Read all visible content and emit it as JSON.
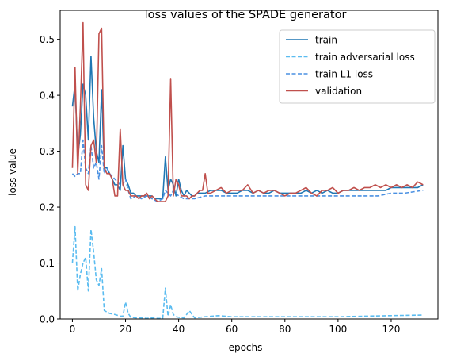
{
  "chart_data": {
    "type": "line",
    "title": "loss values of the SPADE generator",
    "xlabel": "epochs",
    "ylabel": "loss value",
    "xlim": [
      -4.6,
      137.6
    ],
    "ylim": [
      0,
      0.552
    ],
    "xticks": [
      0,
      20,
      40,
      60,
      80,
      100,
      120
    ],
    "yticks": [
      0.0,
      0.1,
      0.2,
      0.3,
      0.4,
      0.5
    ],
    "xtick_labels": [
      "0",
      "20",
      "40",
      "60",
      "80",
      "100",
      "120"
    ],
    "ytick_labels": [
      "0.0",
      "0.1",
      "0.2",
      "0.3",
      "0.4",
      "0.5"
    ],
    "grid": false,
    "legend_position": "top-right",
    "legend_entries": [
      "train",
      "train adversarial loss",
      "train L1 loss",
      "validation"
    ],
    "series": [
      {
        "name": "train",
        "color": "#1f77b4",
        "dash": "solid",
        "x": [
          0,
          1,
          2,
          3,
          4,
          5,
          6,
          7,
          8,
          9,
          10,
          11,
          12,
          13,
          14,
          15,
          16,
          17,
          18,
          19,
          20,
          21,
          22,
          23,
          24,
          25,
          26,
          27,
          28,
          29,
          30,
          31,
          32,
          33,
          34,
          35,
          36,
          37,
          38,
          39,
          40,
          41,
          42,
          43,
          44,
          45,
          46,
          47,
          48,
          49,
          50,
          52,
          54,
          56,
          58,
          60,
          62,
          64,
          66,
          68,
          70,
          72,
          74,
          76,
          78,
          80,
          82,
          84,
          86,
          88,
          90,
          92,
          94,
          96,
          98,
          100,
          102,
          104,
          106,
          108,
          110,
          112,
          114,
          116,
          118,
          120,
          122,
          124,
          126,
          128,
          130,
          132
        ],
        "y": [
          0.38,
          0.42,
          0.29,
          0.33,
          0.42,
          0.4,
          0.32,
          0.47,
          0.36,
          0.3,
          0.28,
          0.41,
          0.27,
          0.27,
          0.26,
          0.25,
          0.24,
          0.24,
          0.23,
          0.31,
          0.25,
          0.24,
          0.225,
          0.225,
          0.22,
          0.22,
          0.22,
          0.22,
          0.22,
          0.22,
          0.22,
          0.215,
          0.215,
          0.215,
          0.215,
          0.29,
          0.23,
          0.25,
          0.24,
          0.22,
          0.25,
          0.23,
          0.22,
          0.23,
          0.225,
          0.22,
          0.22,
          0.225,
          0.225,
          0.225,
          0.225,
          0.23,
          0.23,
          0.23,
          0.225,
          0.225,
          0.225,
          0.23,
          0.23,
          0.225,
          0.23,
          0.225,
          0.225,
          0.23,
          0.225,
          0.225,
          0.225,
          0.225,
          0.225,
          0.23,
          0.225,
          0.23,
          0.225,
          0.23,
          0.225,
          0.225,
          0.23,
          0.23,
          0.23,
          0.23,
          0.23,
          0.23,
          0.23,
          0.23,
          0.23,
          0.235,
          0.235,
          0.235,
          0.235,
          0.235,
          0.235,
          0.24
        ]
      },
      {
        "name": "train adversarial loss",
        "color": "#5bbcf0",
        "dash": "dashed",
        "x": [
          0,
          1,
          2,
          3,
          4,
          5,
          6,
          7,
          8,
          9,
          10,
          11,
          12,
          14,
          16,
          18,
          19,
          20,
          21,
          22,
          24,
          26,
          28,
          30,
          32,
          34,
          35,
          36,
          37,
          38,
          39,
          40,
          42,
          43,
          44,
          46,
          50,
          55,
          60,
          70,
          80,
          90,
          100,
          110,
          120,
          132
        ],
        "y": [
          0.1,
          0.165,
          0.05,
          0.08,
          0.1,
          0.11,
          0.05,
          0.16,
          0.12,
          0.07,
          0.06,
          0.09,
          0.015,
          0.01,
          0.008,
          0.005,
          0.005,
          0.03,
          0.01,
          0.003,
          0.002,
          0.002,
          0.001,
          0.002,
          0.001,
          0.001,
          0.055,
          0.005,
          0.025,
          0.008,
          0.004,
          0.003,
          0.002,
          0.008,
          0.015,
          0.002,
          0.004,
          0.006,
          0.004,
          0.004,
          0.004,
          0.004,
          0.004,
          0.005,
          0.006,
          0.007
        ]
      },
      {
        "name": "train L1 loss",
        "color": "#4a90e2",
        "dash": "dashed",
        "x": [
          0,
          1,
          2,
          3,
          4,
          5,
          6,
          7,
          8,
          9,
          10,
          11,
          12,
          13,
          14,
          16,
          18,
          19,
          20,
          21,
          22,
          24,
          26,
          28,
          30,
          32,
          34,
          35,
          36,
          37,
          38,
          40,
          42,
          44,
          46,
          50,
          55,
          60,
          65,
          70,
          75,
          80,
          85,
          90,
          95,
          100,
          105,
          110,
          115,
          120,
          125,
          132
        ],
        "y": [
          0.26,
          0.255,
          0.26,
          0.26,
          0.32,
          0.27,
          0.26,
          0.31,
          0.27,
          0.28,
          0.25,
          0.31,
          0.26,
          0.27,
          0.26,
          0.25,
          0.24,
          0.24,
          0.25,
          0.23,
          0.215,
          0.22,
          0.215,
          0.22,
          0.215,
          0.21,
          0.215,
          0.23,
          0.225,
          0.22,
          0.23,
          0.22,
          0.215,
          0.215,
          0.215,
          0.22,
          0.22,
          0.22,
          0.22,
          0.22,
          0.22,
          0.22,
          0.22,
          0.22,
          0.22,
          0.22,
          0.22,
          0.22,
          0.22,
          0.225,
          0.225,
          0.23
        ]
      },
      {
        "name": "validation",
        "color": "#c0504d",
        "dash": "solid",
        "x": [
          0,
          1,
          2,
          3,
          4,
          5,
          6,
          7,
          8,
          9,
          10,
          11,
          12,
          13,
          14,
          15,
          16,
          17,
          18,
          19,
          20,
          21,
          22,
          23,
          24,
          25,
          26,
          27,
          28,
          29,
          30,
          31,
          32,
          33,
          34,
          35,
          36,
          37,
          38,
          39,
          40,
          41,
          42,
          43,
          44,
          45,
          46,
          47,
          48,
          49,
          50,
          51,
          52,
          54,
          56,
          58,
          60,
          62,
          64,
          66,
          68,
          70,
          72,
          74,
          76,
          78,
          80,
          82,
          84,
          86,
          88,
          90,
          92,
          94,
          96,
          98,
          100,
          102,
          104,
          106,
          108,
          110,
          112,
          114,
          116,
          118,
          120,
          122,
          124,
          126,
          128,
          130,
          132
        ],
        "y": [
          0.27,
          0.45,
          0.26,
          0.38,
          0.53,
          0.24,
          0.23,
          0.31,
          0.32,
          0.28,
          0.51,
          0.52,
          0.27,
          0.26,
          0.26,
          0.25,
          0.22,
          0.22,
          0.34,
          0.24,
          0.23,
          0.23,
          0.22,
          0.22,
          0.22,
          0.215,
          0.22,
          0.22,
          0.225,
          0.215,
          0.22,
          0.215,
          0.21,
          0.21,
          0.21,
          0.21,
          0.22,
          0.43,
          0.22,
          0.25,
          0.24,
          0.22,
          0.22,
          0.22,
          0.215,
          0.22,
          0.22,
          0.225,
          0.23,
          0.23,
          0.26,
          0.225,
          0.225,
          0.23,
          0.235,
          0.225,
          0.23,
          0.23,
          0.23,
          0.24,
          0.225,
          0.23,
          0.225,
          0.23,
          0.23,
          0.225,
          0.22,
          0.225,
          0.225,
          0.23,
          0.235,
          0.225,
          0.22,
          0.23,
          0.23,
          0.235,
          0.225,
          0.23,
          0.23,
          0.235,
          0.23,
          0.235,
          0.235,
          0.24,
          0.235,
          0.24,
          0.235,
          0.24,
          0.235,
          0.24,
          0.235,
          0.245,
          0.24
        ]
      }
    ]
  }
}
